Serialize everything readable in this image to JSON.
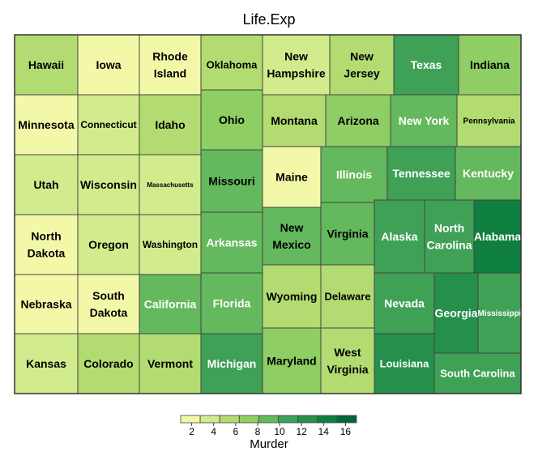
{
  "chart_data": {
    "type": "treemap",
    "title": "Life.Exp",
    "legend": {
      "title": "Murder",
      "tick_labels": [
        "2",
        "4",
        "6",
        "8",
        "10",
        "12",
        "14",
        "16"
      ],
      "bins": [
        1,
        3,
        5,
        7,
        9,
        11,
        13,
        15,
        17
      ],
      "colors": [
        "#f3f8a8",
        "#d2eb8c",
        "#b2dc71",
        "#8ece64",
        "#64b85d",
        "#3fa156",
        "#24904b",
        "#0f7f3f",
        "#006837"
      ]
    },
    "tiles": [
      {
        "state": "Hawaii",
        "label": "Hawaii",
        "murder": 6.2
      },
      {
        "state": "Iowa",
        "label": "Iowa",
        "murder": 2.3
      },
      {
        "state": "Rhode Island",
        "label": "Rhode\nIsland",
        "murder": 2.4
      },
      {
        "state": "Oklahoma",
        "label": "Oklahoma",
        "murder": 6.4
      },
      {
        "state": "New Hampshire",
        "label": "New\nHampshire",
        "murder": 3.3
      },
      {
        "state": "New Jersey",
        "label": "New\nJersey",
        "murder": 5.2
      },
      {
        "state": "Texas",
        "label": "Texas",
        "murder": 12.2
      },
      {
        "state": "Indiana",
        "label": "Indiana",
        "murder": 7.1
      },
      {
        "state": "Minnesota",
        "label": "Minnesota",
        "murder": 2.3
      },
      {
        "state": "Connecticut",
        "label": "Connecticut",
        "murder": 3.1
      },
      {
        "state": "Idaho",
        "label": "Idaho",
        "murder": 5.3
      },
      {
        "state": "Ohio",
        "label": "Ohio",
        "murder": 7.4
      },
      {
        "state": "Montana",
        "label": "Montana",
        "murder": 5.0
      },
      {
        "state": "Arizona",
        "label": "Arizona",
        "murder": 7.8
      },
      {
        "state": "New York",
        "label": "New York",
        "murder": 10.9
      },
      {
        "state": "Pennsylvania",
        "label": "Pennsylvania",
        "murder": 6.1
      },
      {
        "state": "Utah",
        "label": "Utah",
        "murder": 4.5
      },
      {
        "state": "Wisconsin",
        "label": "Wisconsin",
        "murder": 3.0
      },
      {
        "state": "Massachusetts",
        "label": "Massachusetts",
        "murder": 3.3
      },
      {
        "state": "Missouri",
        "label": "Missouri",
        "murder": 9.3
      },
      {
        "state": "Maine",
        "label": "Maine",
        "murder": 2.7
      },
      {
        "state": "Illinois",
        "label": "Illinois",
        "murder": 10.3
      },
      {
        "state": "Tennessee",
        "label": "Tennessee",
        "murder": 11.1
      },
      {
        "state": "Kentucky",
        "label": "Kentucky",
        "murder": 10.6
      },
      {
        "state": "North Dakota",
        "label": "North\nDakota",
        "murder": 1.4
      },
      {
        "state": "Oregon",
        "label": "Oregon",
        "murder": 4.2
      },
      {
        "state": "Washington",
        "label": "Washington",
        "murder": 4.3
      },
      {
        "state": "Arkansas",
        "label": "Arkansas",
        "murder": 10.1
      },
      {
        "state": "New Mexico",
        "label": "New\nMexico",
        "murder": 9.7
      },
      {
        "state": "Virginia",
        "label": "Virginia",
        "murder": 9.5
      },
      {
        "state": "Alaska",
        "label": "Alaska",
        "murder": 11.5
      },
      {
        "state": "North Carolina",
        "label": "North\nCarolina",
        "murder": 11.1
      },
      {
        "state": "Alabama",
        "label": "Alabama",
        "murder": 15.1
      },
      {
        "state": "Nebraska",
        "label": "Nebraska",
        "murder": 2.9
      },
      {
        "state": "South Dakota",
        "label": "South\nDakota",
        "murder": 1.7
      },
      {
        "state": "California",
        "label": "California",
        "murder": 10.3
      },
      {
        "state": "Florida",
        "label": "Florida",
        "murder": 10.7
      },
      {
        "state": "Wyoming",
        "label": "Wyoming",
        "murder": 6.9
      },
      {
        "state": "Delaware",
        "label": "Delaware",
        "murder": 6.2
      },
      {
        "state": "Nevada",
        "label": "Nevada",
        "murder": 11.5
      },
      {
        "state": "Georgia",
        "label": "Georgia",
        "murder": 13.9
      },
      {
        "state": "Mississippi",
        "label": "Mississippi",
        "murder": 12.5
      },
      {
        "state": "Kansas",
        "label": "Kansas",
        "murder": 4.5
      },
      {
        "state": "Colorado",
        "label": "Colorado",
        "murder": 6.8
      },
      {
        "state": "Vermont",
        "label": "Vermont",
        "murder": 5.5
      },
      {
        "state": "Michigan",
        "label": "Michigan",
        "murder": 11.1
      },
      {
        "state": "Maryland",
        "label": "Maryland",
        "murder": 8.5
      },
      {
        "state": "West Virginia",
        "label": "West\nVirginia",
        "murder": 6.7
      },
      {
        "state": "Louisiana",
        "label": "Louisiana",
        "murder": 13.2
      },
      {
        "state": "South Carolina",
        "label": "South Carolina",
        "murder": 11.9
      }
    ]
  }
}
